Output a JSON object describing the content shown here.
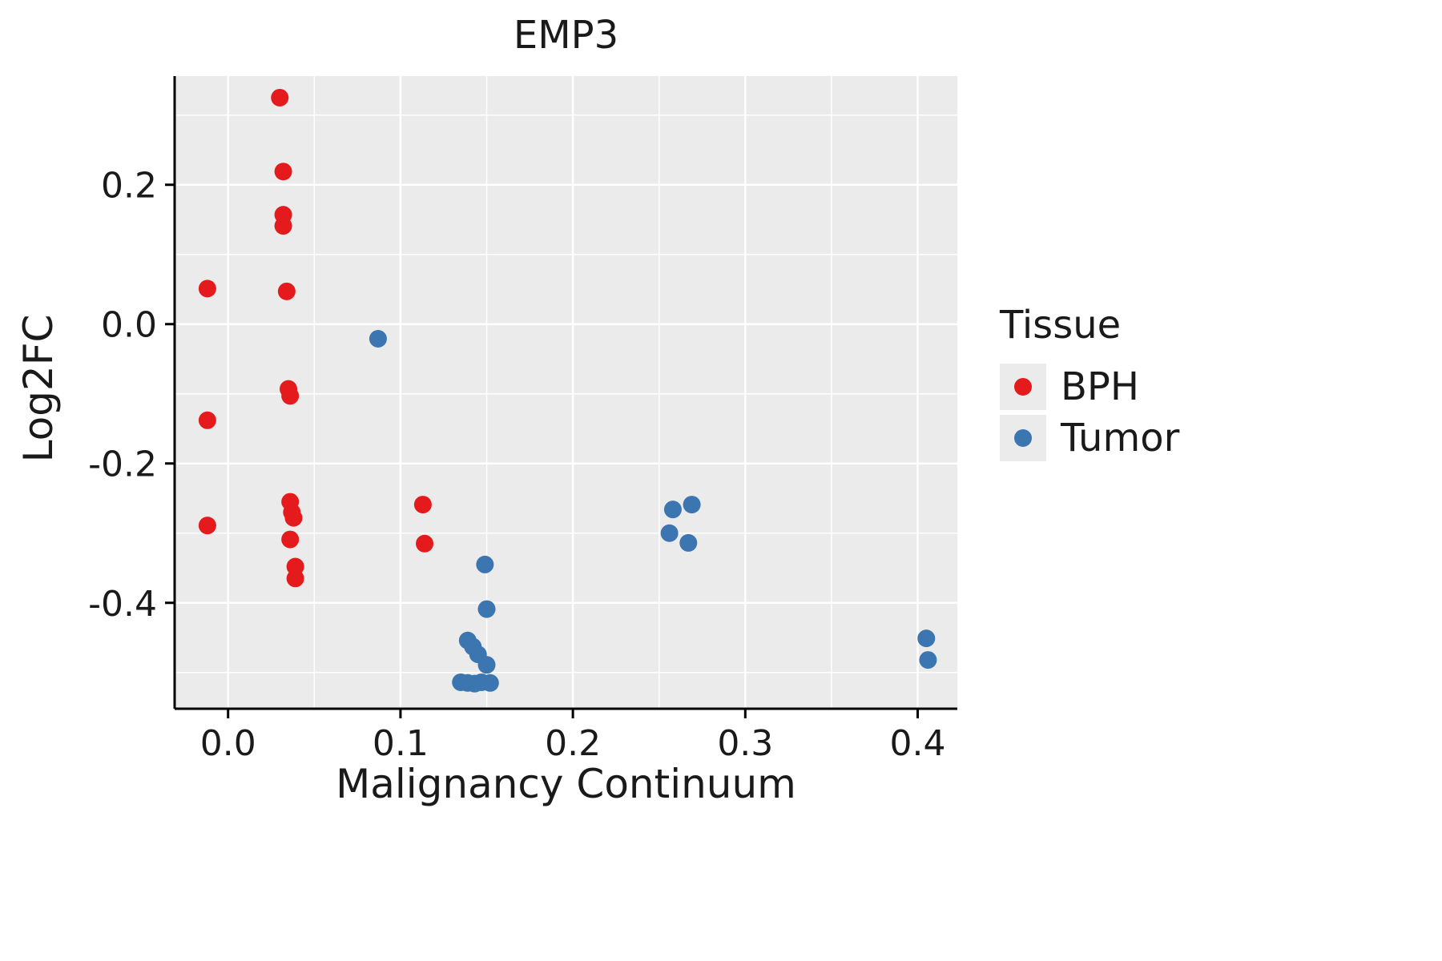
{
  "chart_data": {
    "type": "scatter",
    "title": "EMP3",
    "xlabel": "Malignancy Continuum",
    "ylabel": "Log2FC",
    "xlim": [
      -0.031,
      0.423
    ],
    "ylim": [
      -0.552,
      0.356
    ],
    "x_major_ticks": [
      0.0,
      0.1,
      0.2,
      0.3,
      0.4
    ],
    "x_tick_labels": [
      "0.0",
      "0.1",
      "0.2",
      "0.3",
      "0.4"
    ],
    "x_minor_ticks": [
      0.05,
      0.15,
      0.25,
      0.35
    ],
    "y_major_ticks": [
      -0.4,
      -0.2,
      0.0,
      0.2
    ],
    "y_tick_labels": [
      "-0.4",
      "-0.2",
      "0.0",
      "0.2"
    ],
    "y_minor_ticks": [
      -0.5,
      -0.3,
      -0.1,
      0.1,
      0.3
    ],
    "grid": true,
    "panel_background": "#ebebeb",
    "grid_major_color": "#ffffff",
    "grid_minor_color": "#ffffff",
    "axis_color": "#000000",
    "point_radius": 11,
    "legend": {
      "title": "Tissue",
      "position": "right",
      "entries": [
        {
          "label": "BPH",
          "color": "#e41a1c"
        },
        {
          "label": "Tumor",
          "color": "#3b76b0"
        }
      ]
    },
    "series": [
      {
        "name": "BPH",
        "color": "#e41a1c",
        "points": [
          [
            -0.012,
            0.051
          ],
          [
            -0.012,
            -0.138
          ],
          [
            -0.012,
            -0.289
          ],
          [
            0.03,
            0.325
          ],
          [
            0.032,
            0.219
          ],
          [
            0.032,
            0.157
          ],
          [
            0.032,
            0.141
          ],
          [
            0.034,
            0.047
          ],
          [
            0.035,
            -0.093
          ],
          [
            0.036,
            -0.103
          ],
          [
            0.036,
            -0.255
          ],
          [
            0.037,
            -0.27
          ],
          [
            0.038,
            -0.278
          ],
          [
            0.036,
            -0.309
          ],
          [
            0.039,
            -0.348
          ],
          [
            0.039,
            -0.365
          ],
          [
            0.113,
            -0.259
          ],
          [
            0.114,
            -0.315
          ]
        ]
      },
      {
        "name": "Tumor",
        "color": "#3b76b0",
        "points": [
          [
            0.087,
            -0.021
          ],
          [
            0.149,
            -0.345
          ],
          [
            0.15,
            -0.409
          ],
          [
            0.139,
            -0.454
          ],
          [
            0.142,
            -0.463
          ],
          [
            0.145,
            -0.474
          ],
          [
            0.15,
            -0.489
          ],
          [
            0.135,
            -0.514
          ],
          [
            0.139,
            -0.515
          ],
          [
            0.143,
            -0.516
          ],
          [
            0.147,
            -0.514
          ],
          [
            0.152,
            -0.515
          ],
          [
            0.258,
            -0.266
          ],
          [
            0.269,
            -0.259
          ],
          [
            0.256,
            -0.3
          ],
          [
            0.267,
            -0.314
          ],
          [
            0.405,
            -0.451
          ],
          [
            0.406,
            -0.482
          ]
        ]
      }
    ]
  }
}
